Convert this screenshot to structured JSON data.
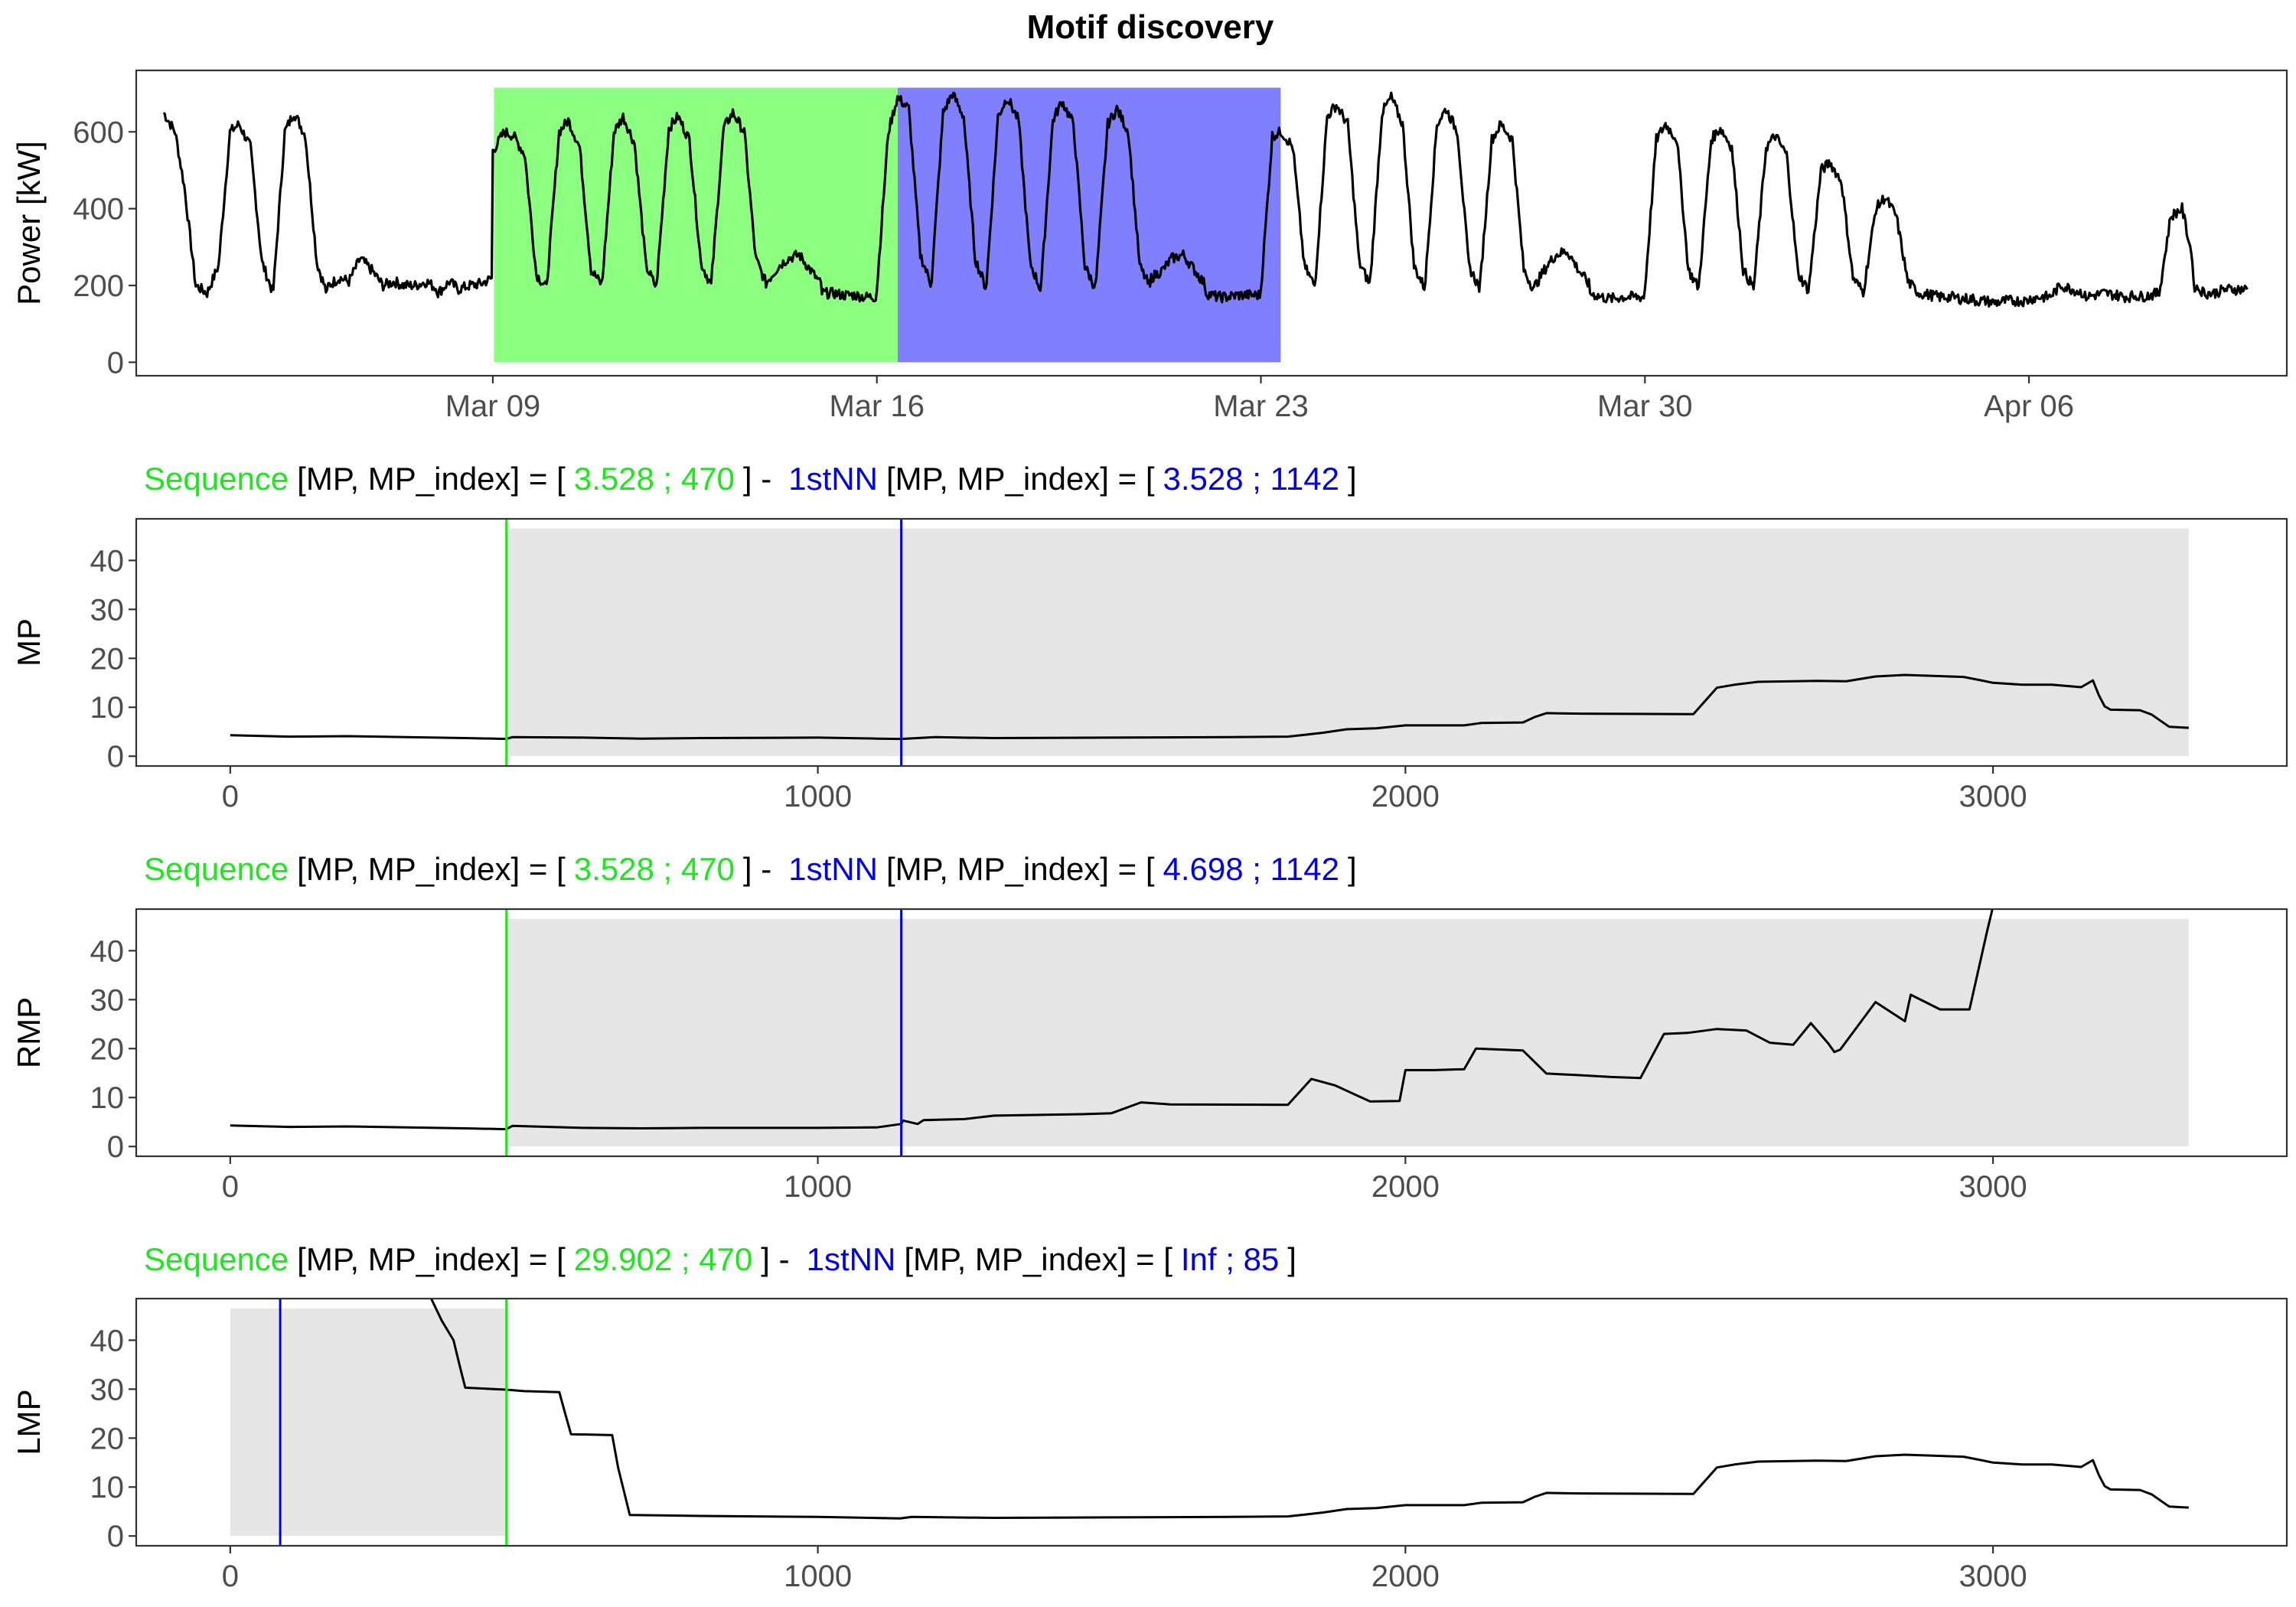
{
  "title": "Motif discovery",
  "colors": {
    "sequence": "#1DE81D",
    "nn": "#0000E6",
    "line": "#000000",
    "shade": "#E6E6E6",
    "fill_sequence": "#8CFF80",
    "fill_nn": "#8080FF",
    "text": "#000000",
    "tick_text": "#4D4D4D"
  },
  "chart_data": [
    {
      "type": "line",
      "name": "power",
      "ylabel": "Power [kW]",
      "xlabel": "",
      "x_ticks": [
        "Mar 09",
        "Mar 16",
        "Mar 23",
        "Mar 30",
        "Apr 06"
      ],
      "x_tick_values": [
        9,
        16,
        23,
        30,
        37
      ],
      "xlim": [
        2.5,
        41.7
      ],
      "y_ticks": [
        0,
        200,
        400,
        600
      ],
      "ylim": [
        -35,
        760
      ],
      "highlights": [
        {
          "role": "sequence",
          "from": 9.02,
          "to": 16.38,
          "y_to": 715
        },
        {
          "role": "nn",
          "from": 16.38,
          "to": 23.36,
          "y_to": 715
        }
      ],
      "series": [
        {
          "days": [
            [
              3.0,
              650,
              600,
              460,
              200,
              180,
              250
            ],
            [
              4.0,
              250,
              600,
              620,
              560,
              260,
              180
            ],
            [
              5.0,
              190,
              600,
              650,
              590,
              260,
              170
            ],
            [
              6.0,
              200,
              220,
              210,
              270,
              240,
              200
            ],
            [
              7.0,
              200,
              210,
              200,
              200,
              210,
              190
            ],
            [
              8.0,
              180,
              210,
              190,
              200,
              205,
              220
            ],
            [
              9.0,
              550,
              600,
              590,
              540,
              230,
              190
            ],
            [
              10.0,
              230,
              600,
              630,
              560,
              240,
              200
            ],
            [
              11.0,
              220,
              600,
              640,
              570,
              250,
              190
            ],
            [
              12.0,
              230,
              610,
              640,
              580,
              260,
              195
            ],
            [
              13.0,
              240,
              610,
              650,
              600,
              270,
              200
            ],
            [
              14.0,
              210,
              250,
              270,
              280,
              240,
              200
            ],
            [
              15.0,
              180,
              180,
              175,
              175,
              170,
              170
            ],
            [
              16.0,
              190,
              600,
              690,
              660,
              280,
              200
            ],
            [
              17.0,
              220,
              650,
              700,
              640,
              270,
              190
            ],
            [
              18.0,
              210,
              640,
              690,
              630,
              260,
              185
            ],
            [
              19.0,
              215,
              630,
              680,
              620,
              250,
              190
            ],
            [
              20.0,
              220,
              620,
              660,
              600,
              250,
              190
            ],
            [
              21.0,
              220,
              240,
              270,
              280,
              240,
              200
            ],
            [
              22.0,
              180,
              170,
              170,
              175,
              175,
              175
            ],
            [
              23.0,
              190,
              590,
              600,
              560,
              250,
              195
            ],
            [
              24.0,
              230,
              640,
              670,
              620,
              260,
              200
            ],
            [
              25.0,
              225,
              650,
              690,
              620,
              250,
              190
            ],
            [
              26.0,
              220,
              620,
              660,
              600,
              250,
              190
            ],
            [
              27.0,
              210,
              580,
              620,
              580,
              240,
              185
            ],
            [
              28.0,
              200,
              250,
              280,
              290,
              240,
              200
            ],
            [
              29.0,
              180,
              170,
              165,
              170,
              170,
              170
            ],
            [
              30.0,
              190,
              580,
              620,
              580,
              240,
              190
            ],
            [
              31.0,
              230,
              580,
              610,
              560,
              240,
              190
            ],
            [
              32.0,
              220,
              560,
              590,
              540,
              230,
              185
            ],
            [
              33.0,
              210,
              500,
              520,
              470,
              220,
              180
            ],
            [
              34.0,
              200,
              400,
              430,
              380,
              210,
              180
            ],
            [
              35.0,
              180,
              175,
              170,
              170,
              165,
              165
            ],
            [
              36.0,
              160,
              160,
              155,
              160,
              160,
              160
            ],
            [
              37.0,
              165,
              170,
              170,
              200,
              190,
              180
            ],
            [
              38.0,
              170,
              175,
              180,
              175,
              170,
              175
            ],
            [
              39.0,
              170,
              175,
              180,
              380,
              400,
              260
            ],
            [
              40.0,
              200,
              180,
              180,
              190,
              190,
              190
            ]
          ]
        }
      ]
    },
    {
      "type": "line",
      "name": "MP",
      "ylabel": "MP",
      "subtitle": {
        "seq_label": "Sequence",
        "prefix": "[MP, MP_index] = [",
        "seq_values": "3.528 ; 470",
        "mid": "] -",
        "nn_label": "1stNN",
        "prefix2": "[MP, MP_index] = [",
        "nn_values": "3.528 ; 1142",
        "suffix": "]"
      },
      "x_ticks": [
        0,
        1000,
        2000,
        3000
      ],
      "xlim": [
        -160,
        3500
      ],
      "y_ticks": [
        0,
        10,
        20,
        30,
        40
      ],
      "ylim": [
        -2,
        48.5
      ],
      "shade": {
        "from": 470,
        "to": 3333,
        "y_from": 0,
        "y_to": 46.5
      },
      "vlines": [
        {
          "role": "sequence",
          "x": 470
        },
        {
          "role": "nn",
          "x": 1142
        }
      ],
      "series": [
        {
          "x": [
            0,
            100,
            200,
            300,
            400,
            470,
            480,
            600,
            700,
            800,
            1000,
            1100,
            1142,
            1200,
            1300,
            1500,
            1700,
            1800,
            1830,
            1860,
            1900,
            1950,
            2000,
            2100,
            2130,
            2200,
            2220,
            2240,
            2300,
            2490,
            2530,
            2560,
            2600,
            2700,
            2750,
            2800,
            2850,
            2950,
            2980,
            3000,
            3050,
            3100,
            3150,
            3170,
            3180,
            3190,
            3200,
            3250,
            3270,
            3300,
            3333
          ],
          "y": [
            4.3,
            4.0,
            4.1,
            3.9,
            3.7,
            3.53,
            3.9,
            3.8,
            3.6,
            3.7,
            3.8,
            3.6,
            3.53,
            3.9,
            3.7,
            3.8,
            3.9,
            4.0,
            4.4,
            4.8,
            5.5,
            5.7,
            6.3,
            6.3,
            6.8,
            6.9,
            8.0,
            8.8,
            8.7,
            8.6,
            14.0,
            14.6,
            15.2,
            15.4,
            15.3,
            16.3,
            16.6,
            16.2,
            15.5,
            15.0,
            14.6,
            14.6,
            14.1,
            15.5,
            12.5,
            10.2,
            9.5,
            9.4,
            8.5,
            6.0,
            5.8
          ]
        }
      ]
    },
    {
      "type": "line",
      "name": "RMP",
      "ylabel": "RMP",
      "subtitle": {
        "seq_label": "Sequence",
        "prefix": "[MP, MP_index] = [",
        "seq_values": "3.528 ; 470",
        "mid": "] -",
        "nn_label": "1stNN",
        "prefix2": "[MP, MP_index] = [",
        "nn_values": "4.698 ; 1142",
        "suffix": "]"
      },
      "x_ticks": [
        0,
        1000,
        2000,
        3000
      ],
      "xlim": [
        -160,
        3500
      ],
      "y_ticks": [
        0,
        10,
        20,
        30,
        40
      ],
      "ylim": [
        -2,
        48.5
      ],
      "shade": {
        "from": 470,
        "to": 3333,
        "y_from": 0,
        "y_to": 46.5
      },
      "vlines": [
        {
          "role": "sequence",
          "x": 470
        },
        {
          "role": "nn",
          "x": 1142
        }
      ],
      "series": [
        {
          "x": [
            0,
            100,
            200,
            300,
            400,
            470,
            480,
            600,
            700,
            800,
            1000,
            1100,
            1142,
            1145,
            1170,
            1180,
            1250,
            1300,
            1350,
            1450,
            1500,
            1550,
            1600,
            1800,
            1840,
            1880,
            1940,
            1990,
            2000,
            2050,
            2100,
            2120,
            2200,
            2240,
            2290,
            2350,
            2400,
            2440,
            2480,
            2530,
            2580,
            2620,
            2660,
            2690,
            2720,
            2730,
            2740,
            2800,
            2850,
            2860,
            2910,
            2960,
            2990,
            3000
          ],
          "y": [
            4.3,
            4.0,
            4.1,
            3.9,
            3.7,
            3.53,
            4.2,
            3.8,
            3.7,
            3.8,
            3.8,
            3.9,
            4.6,
            5.3,
            4.6,
            5.4,
            5.6,
            6.3,
            6.4,
            6.6,
            6.8,
            9.0,
            8.6,
            8.5,
            13.8,
            12.5,
            9.2,
            9.3,
            15.6,
            15.6,
            15.8,
            20.0,
            19.6,
            14.9,
            14.6,
            14.2,
            14.0,
            23.0,
            23.2,
            24.0,
            23.7,
            21.2,
            20.8,
            25.2,
            21.0,
            19.3,
            19.8,
            29.5,
            25.6,
            31.0,
            28.0,
            28.0,
            44.0,
            49.0
          ]
        }
      ]
    },
    {
      "type": "line",
      "name": "LMP",
      "ylabel": "LMP",
      "subtitle": {
        "seq_label": "Sequence",
        "prefix": "[MP, MP_index] = [",
        "seq_values": "29.902 ; 470",
        "mid": "] -",
        "nn_label": "1stNN",
        "prefix2": "[MP, MP_index] = [",
        "nn_values": "Inf ; 85",
        "suffix": "]"
      },
      "x_ticks": [
        0,
        1000,
        2000,
        3000
      ],
      "xlim": [
        -160,
        3500
      ],
      "y_ticks": [
        0,
        10,
        20,
        30,
        40
      ],
      "ylim": [
        -2,
        48.5
      ],
      "shade": {
        "from": 0,
        "to": 470,
        "y_from": 0,
        "y_to": 46.5
      },
      "vlines": [
        {
          "role": "nn",
          "x": 85
        },
        {
          "role": "sequence",
          "x": 470
        }
      ],
      "series": [
        {
          "x": [
            340,
            360,
            380,
            390,
            400,
            470,
            500,
            560,
            570,
            580,
            650,
            660,
            680,
            800,
            1000,
            1140,
            1160,
            1300,
            1500,
            1700,
            1800,
            1830,
            1860,
            1900,
            1950,
            2000,
            2100,
            2130,
            2200,
            2220,
            2240,
            2300,
            2490,
            2530,
            2560,
            2600,
            2700,
            2750,
            2800,
            2850,
            2950,
            2980,
            3000,
            3050,
            3100,
            3150,
            3170,
            3180,
            3190,
            3200,
            3250,
            3270,
            3300,
            3333
          ],
          "y": [
            49.0,
            44.0,
            40.0,
            35.0,
            30.3,
            29.9,
            29.6,
            29.4,
            25.0,
            20.8,
            20.6,
            14.0,
            4.3,
            4.1,
            3.9,
            3.6,
            3.9,
            3.7,
            3.8,
            3.9,
            4.0,
            4.4,
            4.8,
            5.5,
            5.7,
            6.3,
            6.3,
            6.8,
            6.9,
            8.0,
            8.8,
            8.7,
            8.6,
            14.0,
            14.6,
            15.2,
            15.4,
            15.3,
            16.3,
            16.6,
            16.2,
            15.5,
            15.0,
            14.6,
            14.6,
            14.1,
            15.5,
            12.5,
            10.2,
            9.5,
            9.4,
            8.5,
            6.0,
            5.8
          ]
        }
      ]
    }
  ]
}
